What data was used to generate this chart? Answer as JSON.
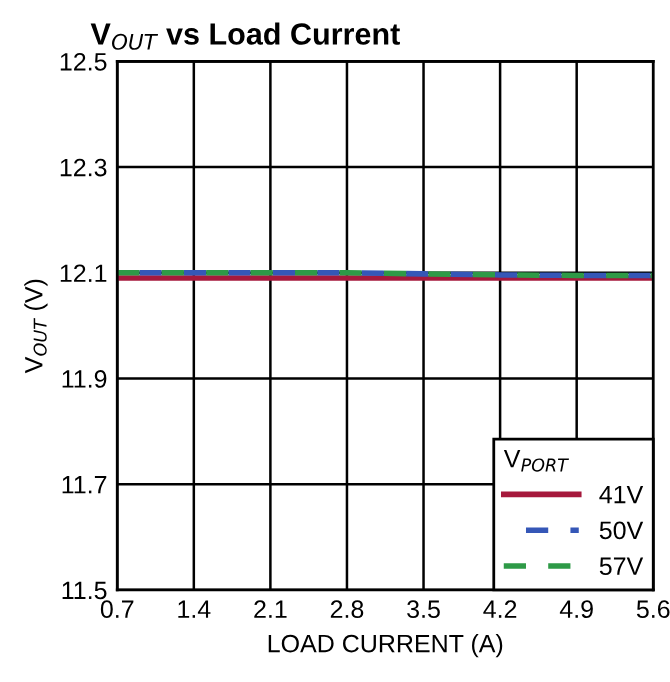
{
  "chart_data": {
    "type": "line",
    "title": "V$_{OUT}$ vs Load Current",
    "xlabel": "LOAD CURRENT (A)",
    "ylabel": "V$_{OUT}$ (V)",
    "legend_title": "V$_{PORT}$",
    "x": [
      0.7,
      1.4,
      2.1,
      2.8,
      3.5,
      4.2,
      4.9,
      5.6
    ],
    "series": [
      {
        "name": "41V",
        "color": "#a6193c",
        "line_style": "solid",
        "values": [
          12.09,
          12.09,
          12.09,
          12.09,
          12.09,
          12.09,
          12.09,
          12.09
        ]
      },
      {
        "name": "50V",
        "color": "#3557b7",
        "line_style": "dashed",
        "values": [
          12.1,
          12.1,
          12.1,
          12.1,
          12.098,
          12.096,
          12.095,
          12.095
        ]
      },
      {
        "name": "57V",
        "color": "#2e9a47",
        "line_style": "dashed",
        "values": [
          12.1,
          12.1,
          12.1,
          12.1,
          12.098,
          12.096,
          12.095,
          12.095
        ]
      }
    ],
    "xlim": [
      0.7,
      5.6
    ],
    "xticks": [
      0.7,
      1.4,
      2.1,
      2.8,
      3.5,
      4.2,
      4.9,
      5.6
    ],
    "ylim": [
      11.5,
      12.5
    ],
    "yticks": [
      11.5,
      11.7,
      11.9,
      12.1,
      12.3,
      12.5
    ],
    "grid": true,
    "legend": "bottom right",
    "marker": "none"
  }
}
